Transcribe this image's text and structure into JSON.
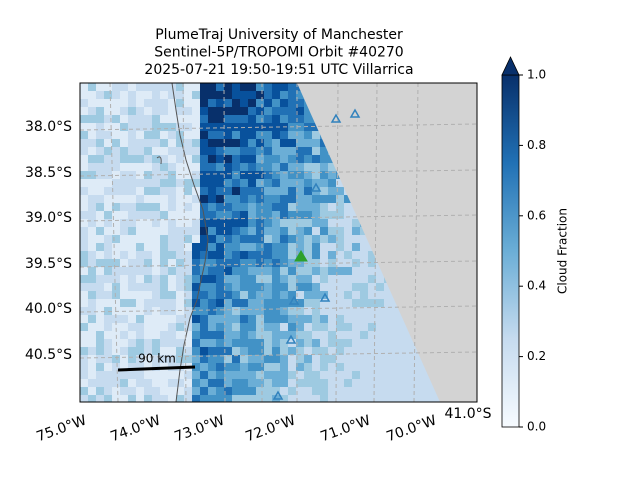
{
  "header": {
    "lines": [
      "PlumeTraj    University of Manchester",
      "Sentinel-5P/TROPOMI Orbit #40270",
      "2025-07-21    19:50-19:51 UTC   Villarrica"
    ]
  },
  "map": {
    "lat_labels": [
      "38.0°S",
      "38.5°S",
      "39.0°S",
      "39.5°S",
      "40.0°S",
      "40.5°S"
    ],
    "lon_labels": [
      "75.0°W",
      "74.0°W",
      "73.0°W",
      "72.0°W",
      "71.0°W",
      "70.0°W"
    ],
    "corner_label": "41.0°S",
    "scale_bar": "90 km"
  },
  "colorbar": {
    "label": "Cloud Fraction",
    "lim": [
      0,
      1
    ],
    "ticks": [
      {
        "value": 0,
        "label": "0.0"
      },
      {
        "value": 0.2,
        "label": "0.2"
      },
      {
        "value": 0.4,
        "label": "0.4"
      },
      {
        "value": 0.6,
        "label": "0.6"
      },
      {
        "value": 0.8,
        "label": "0.8"
      },
      {
        "value": 1,
        "label": "1.0"
      }
    ]
  }
}
